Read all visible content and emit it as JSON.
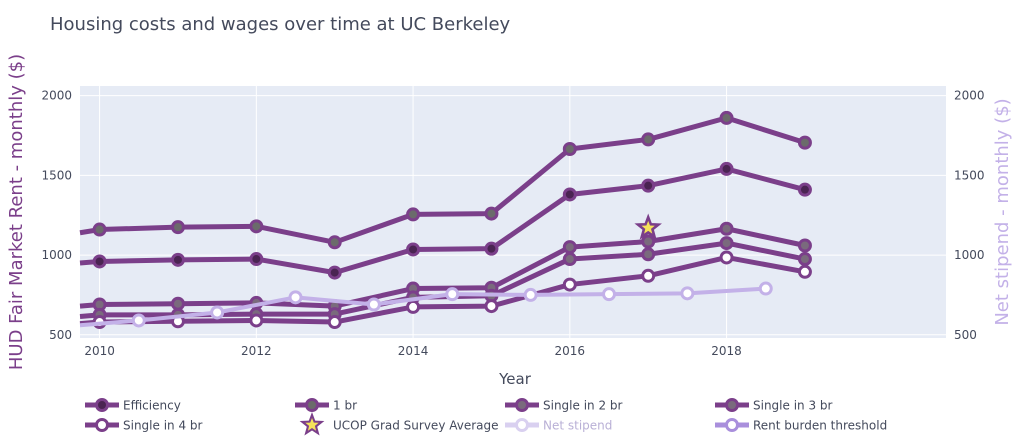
{
  "chart_data": {
    "type": "line",
    "title": "Housing costs and wages over time at UC Berkeley",
    "xlabel": "Year",
    "ylabel_left": "HUD Fair Market Rent - monthly ($)",
    "ylabel_right": "Net stipend - monthly ($)",
    "xlim": [
      2009.75,
      2020.8
    ],
    "ylim": [
      480,
      2060
    ],
    "x_ticks": [
      2010,
      2012,
      2014,
      2016,
      2018
    ],
    "y_ticks": [
      500,
      1000,
      1500,
      2000
    ],
    "grid": true,
    "legend_position": "bottom",
    "series": [
      {
        "name": "1 br",
        "style": "filled",
        "color": "#7b3f8a",
        "x": [
          2009.75,
          2010,
          2011,
          2012,
          2013,
          2014,
          2015,
          2016,
          2017,
          2018,
          2019
        ],
        "values": [
          1140,
          1160,
          1175,
          1180,
          1080,
          1255,
          1260,
          1665,
          1725,
          1860,
          1705
        ]
      },
      {
        "name": "Efficiency",
        "style": "filled-dark",
        "color": "#7b3f8a",
        "x": [
          2009.75,
          2010,
          2011,
          2012,
          2013,
          2014,
          2015,
          2016,
          2017,
          2018,
          2019
        ],
        "values": [
          950,
          960,
          970,
          975,
          890,
          1035,
          1040,
          1380,
          1435,
          1540,
          1410
        ]
      },
      {
        "name": "Single in 2 br",
        "style": "ring",
        "color": "#7b3f8a",
        "x": [
          2009.75,
          2010,
          2011,
          2012,
          2013,
          2014,
          2015,
          2016,
          2017,
          2018,
          2019
        ],
        "values": [
          680,
          690,
          695,
          700,
          680,
          790,
          795,
          1050,
          1085,
          1165,
          1060
        ]
      },
      {
        "name": "Single in 3 br",
        "style": "ring",
        "color": "#7b3f8a",
        "x": [
          2009.75,
          2010,
          2011,
          2012,
          2013,
          2014,
          2015,
          2016,
          2017,
          2018,
          2019
        ],
        "values": [
          615,
          625,
          625,
          630,
          630,
          735,
          745,
          975,
          1005,
          1075,
          975
        ]
      },
      {
        "name": "Single in 4 br",
        "style": "hollow",
        "color": "#7b3f8a",
        "x": [
          2009.75,
          2010,
          2011,
          2012,
          2013,
          2014,
          2015,
          2016,
          2017,
          2018,
          2019
        ],
        "values": [
          570,
          580,
          585,
          590,
          580,
          675,
          680,
          815,
          870,
          985,
          895
        ]
      },
      {
        "name": "Net stipend",
        "style": "light-hollow",
        "color": "#c3b1e8",
        "x": [
          2009.75,
          2010.5,
          2011.5,
          2012.5,
          2013.5,
          2014.5,
          2015.5,
          2016.5,
          2017.5,
          2018.5
        ],
        "values": [
          560,
          590,
          640,
          735,
          690,
          755,
          750,
          755,
          760,
          790
        ]
      },
      {
        "name": "Rent burden threshold",
        "style": "hollow-lilac",
        "color": "#a98fdc",
        "x": [],
        "values": []
      }
    ],
    "annotations": [
      {
        "name": "UCOP Grad Survey Average",
        "type": "star",
        "x": 2017,
        "value": 1170
      }
    ]
  }
}
